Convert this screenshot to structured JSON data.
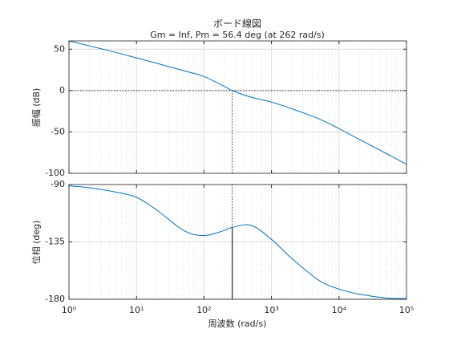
{
  "chart_data": [
    {
      "type": "line",
      "title": "ボード線図",
      "subtitle": "Gm = Inf, Pm = 56.4 deg (at 262 rad/s)",
      "ylabel": "振幅 (dB)",
      "x": [
        1,
        2,
        5,
        10,
        20,
        50,
        100,
        200,
        262,
        500,
        1000,
        2000,
        5000,
        10000,
        20000,
        50000,
        100000
      ],
      "values": [
        60,
        54,
        46,
        39.5,
        33,
        24,
        17,
        5,
        0,
        -8,
        -14,
        -22,
        -34,
        -46,
        -59,
        -76,
        -89
      ],
      "color": "#0072bd",
      "log_x": true,
      "grid": true,
      "minor_grid": true,
      "xlim": [
        1,
        100000
      ],
      "xticks": [
        1,
        10,
        100,
        1000,
        10000,
        100000
      ],
      "ylim": [
        -100,
        60
      ],
      "yticks": [
        -100,
        -50,
        0,
        50
      ],
      "reference_y": 0
    },
    {
      "type": "line",
      "ylabel": "位相 (deg)",
      "xlabel": "周波数  (rad/s)",
      "x": [
        1,
        2,
        5,
        10,
        20,
        50,
        100,
        200,
        262,
        500,
        1000,
        2000,
        5000,
        10000,
        20000,
        50000,
        100000
      ],
      "values": [
        -91,
        -92.5,
        -96,
        -100,
        -110,
        -126,
        -130,
        -126,
        -123.6,
        -122,
        -133,
        -148,
        -165,
        -172,
        -176,
        -179,
        -179.5
      ],
      "color": "#0072bd",
      "log_x": true,
      "grid": true,
      "minor_grid": true,
      "xlim": [
        1,
        100000
      ],
      "xticks": [
        {
          "value": 1,
          "label": "10⁰"
        },
        {
          "value": 10,
          "label": "10¹"
        },
        {
          "value": 100,
          "label": "10²"
        },
        {
          "value": 1000,
          "label": "10³"
        },
        {
          "value": 10000,
          "label": "10⁴"
        },
        {
          "value": 100000,
          "label": "10⁵"
        }
      ],
      "ylim": [
        -180,
        -90
      ],
      "yticks": [
        -180,
        -135,
        -90
      ],
      "reference_y": -180
    }
  ]
}
